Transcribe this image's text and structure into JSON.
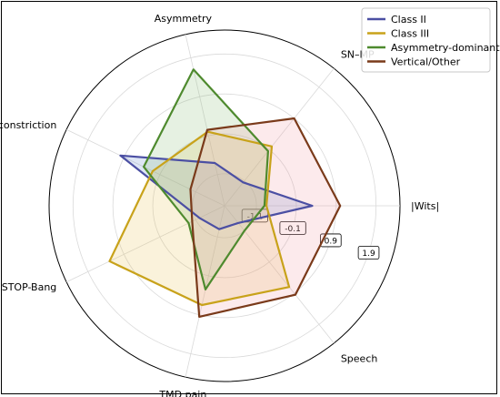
{
  "chart_data": {
    "type": "radar",
    "axes": [
      "|Wits|",
      "SN–MP",
      "Asymmetry",
      "Airway constriction",
      "STOP-Bang",
      "TMD pain",
      "Speech"
    ],
    "r_ticks": [
      {
        "label": "-1.1",
        "value": -1.1
      },
      {
        "label": "-0.1",
        "value": -0.1
      },
      {
        "label": "0.9",
        "value": 0.9
      },
      {
        "label": "1.9",
        "value": 1.9
      }
    ],
    "r_range": [
      -1.9,
      2.5
    ],
    "legend_position": "top-right",
    "grid": true,
    "series": [
      {
        "name": "Class II",
        "color": "#4b4fa3",
        "fill": "#6a8fd0",
        "values": [
          0.3,
          -1.15,
          -0.8,
          1.0,
          -1.2,
          -1.3,
          -1.35
        ]
      },
      {
        "name": "Class III",
        "color": "#c8a21a",
        "fill": "#e8c45a",
        "values": [
          -0.85,
          0.0,
          0.0,
          0.1,
          1.3,
          0.65,
          0.7
        ]
      },
      {
        "name": "Asymmetry-dominant",
        "color": "#4e8a2e",
        "fill": "#8cc07a",
        "values": [
          -0.9,
          -0.15,
          1.6,
          0.35,
          -0.9,
          0.25,
          -1.1
        ]
      },
      {
        "name": "Vertical/Other",
        "color": "#7a3a1a",
        "fill": "#f2a0a8",
        "values": [
          1.0,
          0.9,
          0.05,
          -0.95,
          -1.0,
          0.95,
          0.95
        ]
      }
    ]
  }
}
